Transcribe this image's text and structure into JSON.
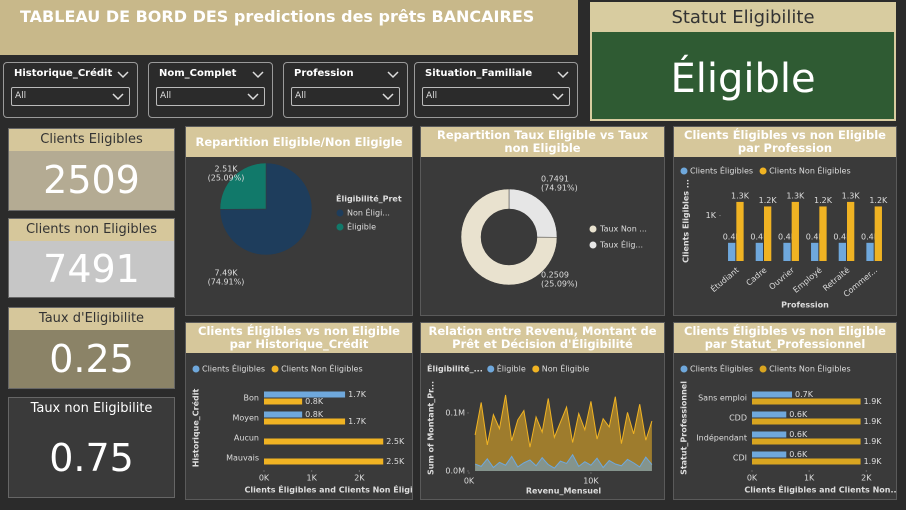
{
  "header": {
    "title": "TABLEAU DE BORD DES predictions des prêts BANCAIRES"
  },
  "status": {
    "title": "Statut Eligibilite",
    "value": "Éligible"
  },
  "filters": [
    {
      "label": "Historique_Crédit",
      "value": "All"
    },
    {
      "label": "Nom_Complet",
      "value": "All"
    },
    {
      "label": "Profession",
      "value": "All"
    },
    {
      "label": "Situation_Familiale",
      "value": "All"
    }
  ],
  "kpis": [
    {
      "label": "Clients Eligibles",
      "value": 2509
    },
    {
      "label": "Clients non Eligibles",
      "value": 7491
    },
    {
      "label": "Taux d'Eligibilite",
      "value": 0.25
    },
    {
      "label": "Taux non Eligibilite",
      "value": 0.75
    }
  ],
  "chart_data": [
    {
      "type": "pie",
      "title": "Repartition Eligible/Non Eligigle",
      "legend_title": "Éligibilité_Pret",
      "categories": [
        "Non Éligi...",
        "Éligible"
      ],
      "values": [
        7490,
        2510
      ],
      "value_labels": [
        "7.49K",
        "2.51K"
      ],
      "percent_labels": [
        "(74.91%)",
        "(25.09%)"
      ],
      "colors": [
        "#1e3d5c",
        "#11796a"
      ]
    },
    {
      "type": "donut",
      "title": "Repartition Taux Eligible vs Taux non Eligible",
      "categories": [
        "Taux Élig...",
        "Taux Non ..."
      ],
      "values": [
        0.2509,
        0.7491
      ],
      "percent_labels": [
        "(25.09%)",
        "(74.91%)"
      ],
      "colors": [
        "#e6e6e6",
        "#e9e2cf"
      ]
    },
    {
      "type": "bar",
      "title": "Clients Éligibles vs non Eligible par Profession",
      "x_label": "Profession",
      "y_label": "Clients Eligibles ...",
      "categories": [
        "Étudiant",
        "Cadre",
        "Ouvrier",
        "Employé",
        "Retraité",
        "Commer..."
      ],
      "series": [
        {
          "name": "Clients Éligibles",
          "color": "#6fa8dc",
          "values": [
            400,
            400,
            400,
            400,
            400,
            400
          ],
          "value_labels": [
            "0.4K",
            "0.4K",
            "0.4K",
            "0.4K",
            "0.4K",
            "0.4K"
          ]
        },
        {
          "name": "Clients Non Éligibles",
          "color": "#f0b323",
          "values": [
            1300,
            1200,
            1300,
            1200,
            1300,
            1200
          ],
          "value_labels": [
            "1.3K",
            "1.2K",
            "1.3K",
            "1.2K",
            "1.3K",
            "1.2K"
          ]
        }
      ],
      "ylim": [
        0,
        1760
      ],
      "yticks": [
        {
          "value": 1000,
          "label": "1K"
        }
      ]
    },
    {
      "type": "barh",
      "title": "Clients Éligibles vs non Eligible par Historique_Crédit",
      "x_label": "Clients Éligibles and Clients Non Éligib...",
      "y_label": "Historique_Crédit",
      "categories": [
        "Bon",
        "Moyen",
        "Aucun",
        "Mauvais"
      ],
      "series": [
        {
          "name": "Clients Éligibles",
          "color": "#6fa8dc",
          "values": [
            1700,
            800,
            null,
            null
          ],
          "value_labels": [
            "1.7K",
            "0.8K",
            null,
            null
          ]
        },
        {
          "name": "Clients Non Éligibles",
          "color": "#f0b323",
          "values": [
            800,
            1700,
            2500,
            2500
          ],
          "value_labels": [
            "0.8K",
            "1.7K",
            "2.5K",
            "2.5K"
          ]
        }
      ],
      "xlim": [
        0,
        2600
      ],
      "xticks": [
        {
          "value": 0,
          "label": "0K"
        },
        {
          "value": 1000,
          "label": "1K"
        },
        {
          "value": 2000,
          "label": "2K"
        }
      ]
    },
    {
      "type": "line",
      "title": "Relation entre Revenu, Montant de Prêt et Décision d'Éligibilité",
      "legend_title": "Éligibilité_...",
      "x_label": "Revenu_Mensuel",
      "y_label": "Sum of Montant_Pr...",
      "x": [
        500,
        1000,
        1500,
        2000,
        2500,
        3000,
        3500,
        4000,
        4500,
        5000,
        5500,
        6000,
        6500,
        7000,
        7500,
        8000,
        8500,
        9000,
        9500,
        10000,
        10500,
        11000,
        11500,
        12000,
        12500,
        13000,
        13500,
        14000,
        14500,
        15000
      ],
      "series": [
        {
          "name": "Éligible",
          "color": "#6fa8dc",
          "values": [
            12000,
            8000,
            21000,
            6000,
            15000,
            10000,
            25000,
            7000,
            14000,
            19000,
            9000,
            23000,
            11000,
            5000,
            17000,
            13000,
            28000,
            8000,
            16000,
            10000,
            22000,
            6000,
            18000,
            12000,
            9000,
            20000,
            14000,
            7000,
            24000,
            11000
          ]
        },
        {
          "name": "Non Éligible",
          "color": "#f0b323",
          "values": [
            62000,
            118000,
            45000,
            97000,
            73000,
            131000,
            52000,
            88000,
            104000,
            41000,
            93000,
            67000,
            125000,
            58000,
            84000,
            110000,
            49000,
            99000,
            71000,
            120000,
            55000,
            90000,
            76000,
            128000,
            47000,
            101000,
            64000,
            115000,
            53000,
            86000
          ]
        }
      ],
      "xlim": [
        0,
        15500
      ],
      "xticks": [
        {
          "value": 0,
          "label": "0K"
        },
        {
          "value": 10000,
          "label": "10K"
        }
      ],
      "ylim": [
        0,
        155000
      ],
      "yticks": [
        {
          "value": 0,
          "label": "0.0M"
        },
        {
          "value": 100000,
          "label": "0.1M"
        }
      ]
    },
    {
      "type": "barh",
      "title": "Clients Éligibles vs non Eligible par Statut_Professionnel",
      "x_label": "Clients Éligibles and Clients Non...",
      "y_label": "Statut_Professionnel",
      "categories": [
        "Sans emploi",
        "CDD",
        "Indépendant",
        "CDI"
      ],
      "series": [
        {
          "name": "Clients Éligibles",
          "color": "#6fa8dc",
          "values": [
            700,
            600,
            600,
            600
          ],
          "value_labels": [
            "0.7K",
            "0.6K",
            "0.6K",
            "0.6K"
          ]
        },
        {
          "name": "Clients Non Éligibles",
          "color": "#d9a520",
          "values": [
            1900,
            1900,
            1900,
            1900
          ],
          "value_labels": [
            "1.9K",
            "1.9K",
            "1.9K",
            "1.9K"
          ]
        }
      ],
      "xlim": [
        0,
        2100
      ],
      "xticks": [
        {
          "value": 0,
          "label": "0K"
        },
        {
          "value": 1000,
          "label": "1K"
        },
        {
          "value": 2000,
          "label": "2K"
        }
      ]
    }
  ]
}
